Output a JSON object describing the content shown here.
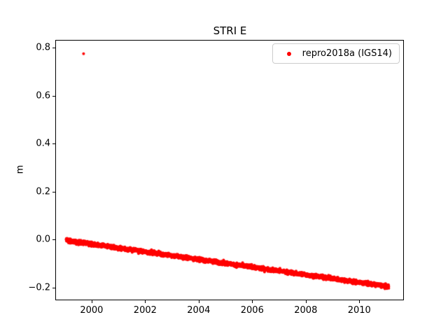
{
  "chart_data": {
    "type": "scatter",
    "title": "STRI E",
    "xlabel": "",
    "ylabel": "m",
    "xlim": [
      1998.67,
      2011.64
    ],
    "ylim": [
      -0.25,
      0.83
    ],
    "grid": false,
    "legend_position": "upper right",
    "xticks": {
      "values": [
        2000,
        2002,
        2004,
        2006,
        2008,
        2010
      ],
      "labels": [
        "2000",
        "2002",
        "2004",
        "2006",
        "2008",
        "2010"
      ]
    },
    "yticks": {
      "values": [
        -0.2,
        0.0,
        0.2,
        0.4,
        0.6,
        0.8
      ],
      "labels": [
        "−0.2",
        "0.0",
        "0.2",
        "0.4",
        "0.6",
        "0.8"
      ]
    },
    "series": [
      {
        "name": "repro2018a (IGS14)",
        "color": "#ff0000",
        "marker": "dot",
        "marker_radius_px": 2,
        "trend": {
          "x_start": 1999.05,
          "x_end": 2011.1,
          "y_start": -0.003,
          "y_end": -0.196,
          "points_per_year": 260,
          "noise_std": 0.004
        },
        "anchor_points": [
          [
            1999.05,
            -0.003
          ],
          [
            2000.0,
            -0.018
          ],
          [
            2002.0,
            -0.05
          ],
          [
            2004.0,
            -0.082
          ],
          [
            2006.0,
            -0.114
          ],
          [
            2008.0,
            -0.146
          ],
          [
            2010.0,
            -0.178
          ],
          [
            2011.1,
            -0.196
          ]
        ],
        "outliers": [
          [
            1999.7,
            0.775
          ]
        ]
      }
    ]
  }
}
